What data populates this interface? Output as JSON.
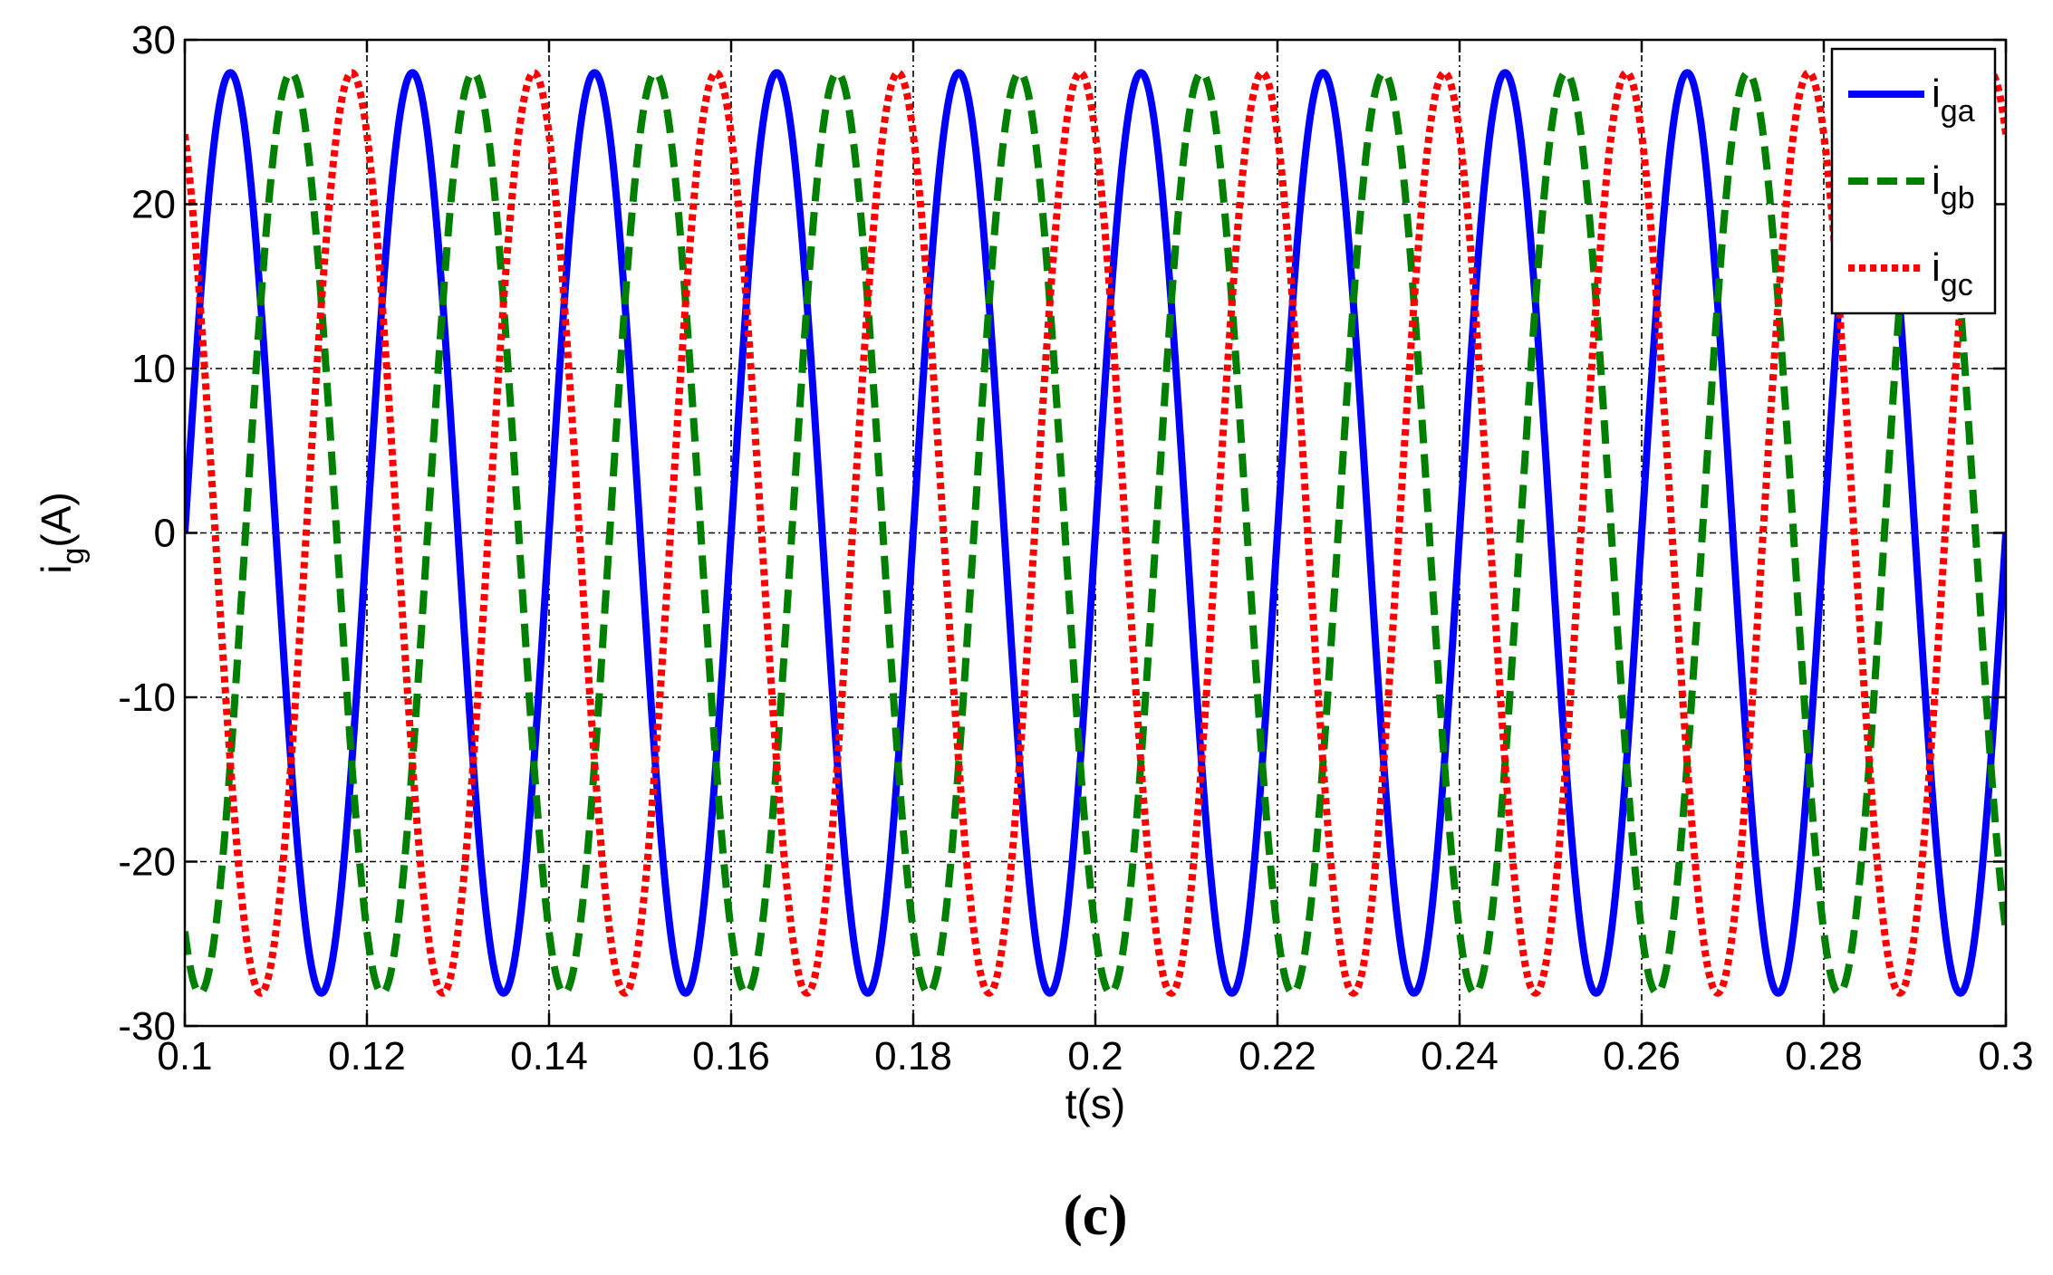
{
  "chart_data": {
    "type": "line",
    "xlabel": "t(s)",
    "ylabel": {
      "main": "i",
      "sub": "g",
      "rest": "(A)"
    },
    "xlim": [
      0.1,
      0.3
    ],
    "ylim": [
      -30,
      30
    ],
    "xticks": [
      0.1,
      0.12,
      0.14,
      0.16,
      0.18,
      0.2,
      0.22,
      0.24,
      0.26,
      0.28,
      0.3
    ],
    "xtick_labels": [
      "0.1",
      "0.12",
      "0.14",
      "0.16",
      "0.18",
      "0.2",
      "0.22",
      "0.24",
      "0.26",
      "0.28",
      "0.3"
    ],
    "yticks": [
      -30,
      -20,
      -10,
      0,
      10,
      20,
      30
    ],
    "ytick_labels": [
      "-30",
      "-20",
      "-10",
      "0",
      "10",
      "20",
      "30"
    ],
    "grid": true,
    "legend_position": "top-right",
    "series": [
      {
        "name": "i_ga",
        "label_main": "i",
        "label_sub": "ga",
        "color": "#0000ff",
        "style": "solid",
        "amplitude": 28,
        "frequency_hz": 50,
        "phase_deg": 0
      },
      {
        "name": "i_gb",
        "label_main": "i",
        "label_sub": "gb",
        "color": "#008000",
        "style": "dashed",
        "amplitude": 28,
        "frequency_hz": 50,
        "phase_deg": -120
      },
      {
        "name": "i_gc",
        "label_main": "i",
        "label_sub": "gc",
        "color": "#ff0000",
        "style": "dotted",
        "amplitude": 28,
        "frequency_hz": 50,
        "phase_deg": 120
      }
    ],
    "caption": "(c)"
  }
}
